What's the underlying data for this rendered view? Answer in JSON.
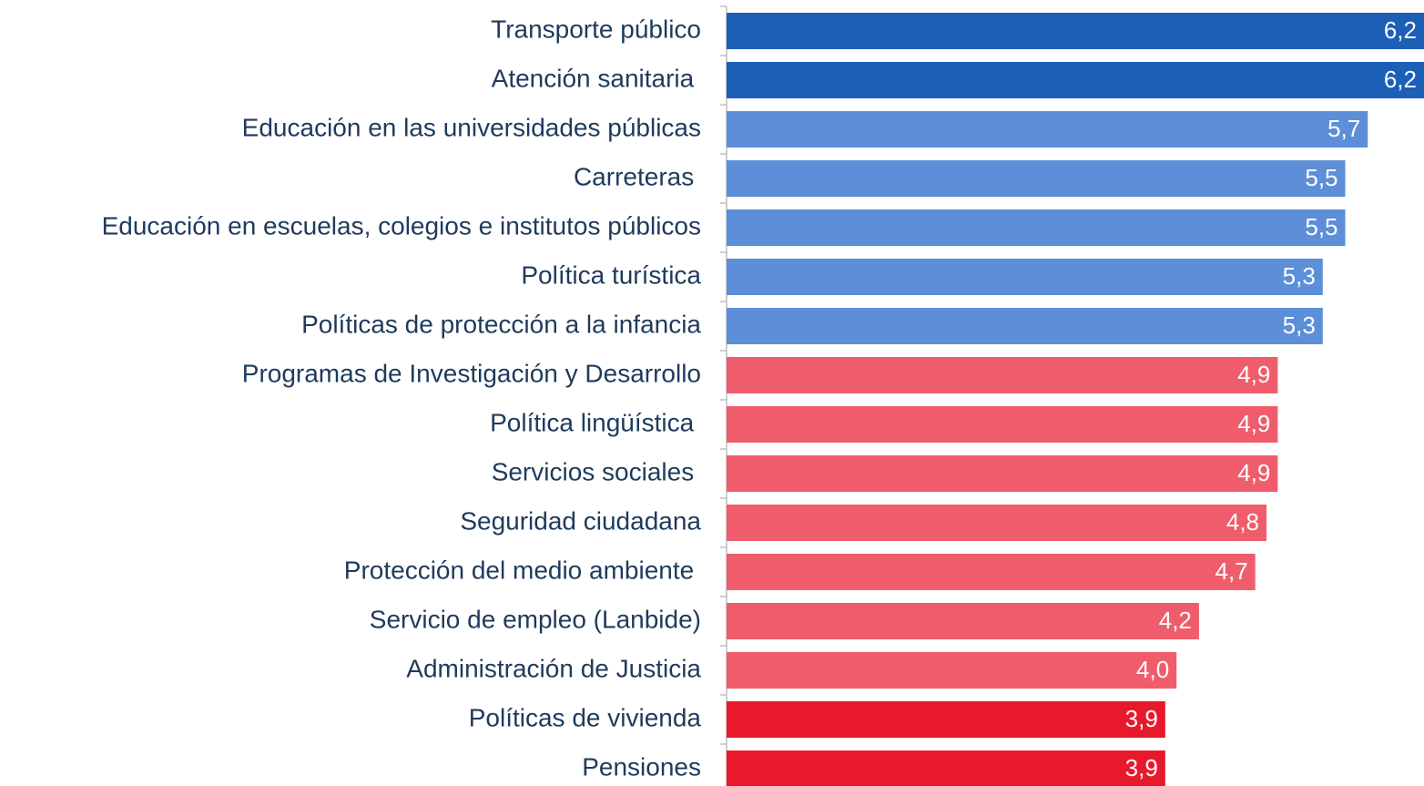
{
  "chart_data": {
    "type": "bar",
    "orientation": "horizontal",
    "categories": [
      "Transporte público",
      "Atención sanitaria ",
      "Educación en las universidades públicas",
      "Carreteras ",
      "Educación en escuelas, colegios e institutos públicos",
      "Política turística",
      "Políticas de protección a la infancia",
      "Programas de Investigación y Desarrollo",
      "Política lingüística ",
      "Servicios sociales ",
      "Seguridad ciudadana",
      "Protección del medio ambiente ",
      "Servicio de empleo (Lanbide)",
      "Administración de Justicia",
      "Políticas de vivienda",
      "Pensiones"
    ],
    "values": [
      6.2,
      6.2,
      5.7,
      5.5,
      5.5,
      5.3,
      5.3,
      4.9,
      4.9,
      4.9,
      4.8,
      4.7,
      4.2,
      4.0,
      3.9,
      3.9
    ],
    "value_labels": [
      "6,2",
      "6,2",
      "5,7",
      "5,5",
      "5,5",
      "5,3",
      "5,3",
      "4,9",
      "4,9",
      "4,9",
      "4,8",
      "4,7",
      "4,2",
      "4,0",
      "3,9",
      "3,9"
    ],
    "colors": [
      "#1b5fb6",
      "#1b5fb6",
      "#5c8fd8",
      "#5c8fd8",
      "#5c8fd8",
      "#5c8fd8",
      "#5c8fd8",
      "#ef5d6c",
      "#ef5d6c",
      "#ef5d6c",
      "#ef5d6c",
      "#ef5d6c",
      "#ef5d6c",
      "#ef5d6c",
      "#e8192c",
      "#e8192c"
    ],
    "xlim": [
      0,
      6.2
    ]
  }
}
